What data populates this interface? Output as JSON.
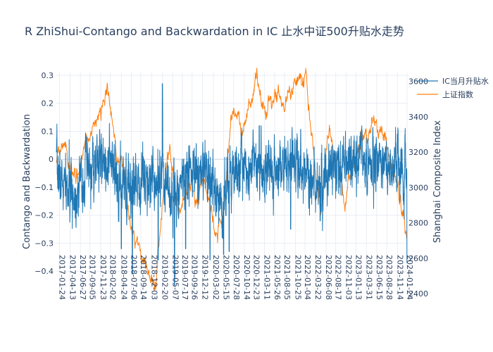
{
  "chart_data": {
    "type": "line",
    "title": "R     ZhiShui-Contango and Backwardation in IC     止水中证500升贴水走势",
    "ylabel_left": "Contango and Backwardation",
    "ylabel_right": "Shanghai Composite Index",
    "y_left_range": [
      -0.48,
      0.31
    ],
    "y_left_ticks": [
      0.3,
      0.2,
      0.1,
      0,
      -0.1,
      -0.2,
      -0.3,
      -0.4
    ],
    "y_left_tick_labels": [
      "0.3",
      "0.2",
      "0.1",
      "0",
      "−0.1",
      "−0.2",
      "−0.3",
      "−0.4"
    ],
    "y_right_range": [
      2400,
      3650
    ],
    "y_right_ticks": [
      3600,
      3400,
      3200,
      3000,
      2800,
      2600,
      2400
    ],
    "y_right_tick_labels": [
      "3600",
      "3400",
      "3200",
      "3000",
      "2800",
      "2600",
      "2400"
    ],
    "x_range": [
      "2017-01-01",
      "2024-01-24"
    ],
    "x_ticks": [
      "2017-01-24",
      "2017-04-13",
      "2017-06-27",
      "2017-09-05",
      "2017-11-23",
      "2018-02-02",
      "2018-04-24",
      "2018-07-06",
      "2018-09-14",
      "2018-12-03",
      "2019-02-20",
      "2019-05-07",
      "2019-07-17",
      "2019-09-26",
      "2019-12-12",
      "2020-03-02",
      "2020-05-15",
      "2020-07-28",
      "2020-10-14",
      "2020-12-23",
      "2021-03-11",
      "2021-05-26",
      "2021-08-05",
      "2021-10-25",
      "2022-01-04",
      "2022-03-22",
      "2022-06-08",
      "2022-08-17",
      "2022-11-03",
      "2023-01-13",
      "2023-03-31",
      "2023-06-15",
      "2023-08-28",
      "2023-11-14",
      "2024-01-24"
    ],
    "series": [
      {
        "name": "IC当月升贴水",
        "axis": "left",
        "color": "#1f77b4",
        "anchors": [
          {
            "x": "2017-01-01",
            "y": -0.04
          },
          {
            "x": "2017-03-01",
            "y": -0.1
          },
          {
            "x": "2017-05-15",
            "y": -0.13
          },
          {
            "x": "2017-08-01",
            "y": -0.05
          },
          {
            "x": "2017-11-01",
            "y": -0.02
          },
          {
            "x": "2018-01-15",
            "y": 0.0
          },
          {
            "x": "2018-04-01",
            "y": -0.1
          },
          {
            "x": "2018-06-01",
            "y": -0.12
          },
          {
            "x": "2018-09-01",
            "y": -0.06
          },
          {
            "x": "2018-12-15",
            "y": -0.06
          },
          {
            "x": "2019-02-20",
            "y": -0.04
          },
          {
            "x": "2019-05-01",
            "y": -0.14
          },
          {
            "x": "2019-08-01",
            "y": -0.05
          },
          {
            "x": "2019-11-01",
            "y": -0.05
          },
          {
            "x": "2020-02-01",
            "y": -0.08
          },
          {
            "x": "2020-04-15",
            "y": -0.16
          },
          {
            "x": "2020-07-01",
            "y": -0.07
          },
          {
            "x": "2020-10-01",
            "y": -0.02
          },
          {
            "x": "2021-01-01",
            "y": -0.02
          },
          {
            "x": "2021-05-01",
            "y": -0.03
          },
          {
            "x": "2021-08-01",
            "y": -0.03
          },
          {
            "x": "2021-11-01",
            "y": -0.01
          },
          {
            "x": "2022-02-01",
            "y": -0.06
          },
          {
            "x": "2022-05-01",
            "y": -0.1
          },
          {
            "x": "2022-08-01",
            "y": -0.02
          },
          {
            "x": "2022-11-01",
            "y": -0.02
          },
          {
            "x": "2023-02-01",
            "y": 0.0
          },
          {
            "x": "2023-05-01",
            "y": -0.02
          },
          {
            "x": "2023-08-01",
            "y": -0.01
          },
          {
            "x": "2023-11-01",
            "y": -0.02
          },
          {
            "x": "2024-01-24",
            "y": -0.08
          }
        ],
        "spikes": [
          {
            "x": "2018-07-15",
            "y": -0.41
          },
          {
            "x": "2018-04-24",
            "y": -0.32
          },
          {
            "x": "2019-01-20",
            "y": -0.36
          },
          {
            "x": "2019-02-20",
            "y": 0.27
          },
          {
            "x": "2019-05-20",
            "y": -0.45
          },
          {
            "x": "2019-08-10",
            "y": -0.32
          },
          {
            "x": "2020-02-05",
            "y": -0.36
          },
          {
            "x": "2020-05-15",
            "y": -0.34
          },
          {
            "x": "2020-06-25",
            "y": -0.33
          },
          {
            "x": "2021-02-01",
            "y": 0.12
          },
          {
            "x": "2021-09-20",
            "y": -0.25
          },
          {
            "x": "2022-04-25",
            "y": -0.22
          },
          {
            "x": "2023-11-14",
            "y": 0.09
          },
          {
            "x": "2024-01-24",
            "y": -0.37
          }
        ]
      },
      {
        "name": "上证指数",
        "axis": "right",
        "color": "#ff7f0e",
        "anchors": [
          {
            "x": "2017-01-01",
            "y": 3120
          },
          {
            "x": "2017-03-01",
            "y": 3250
          },
          {
            "x": "2017-05-10",
            "y": 3060
          },
          {
            "x": "2017-08-01",
            "y": 3270
          },
          {
            "x": "2017-11-15",
            "y": 3420
          },
          {
            "x": "2018-01-25",
            "y": 3580
          },
          {
            "x": "2018-03-01",
            "y": 3270
          },
          {
            "x": "2018-05-01",
            "y": 3120
          },
          {
            "x": "2018-07-01",
            "y": 2800
          },
          {
            "x": "2018-10-15",
            "y": 2600
          },
          {
            "x": "2019-01-02",
            "y": 2460
          },
          {
            "x": "2019-02-25",
            "y": 2970
          },
          {
            "x": "2019-04-08",
            "y": 3260
          },
          {
            "x": "2019-06-15",
            "y": 2880
          },
          {
            "x": "2019-09-10",
            "y": 3020
          },
          {
            "x": "2019-12-31",
            "y": 3050
          },
          {
            "x": "2020-03-20",
            "y": 2700
          },
          {
            "x": "2020-05-15",
            "y": 2860
          },
          {
            "x": "2020-07-10",
            "y": 3400
          },
          {
            "x": "2020-10-14",
            "y": 3330
          },
          {
            "x": "2021-01-15",
            "y": 3600
          },
          {
            "x": "2021-03-25",
            "y": 3400
          },
          {
            "x": "2021-06-15",
            "y": 3580
          },
          {
            "x": "2021-08-05",
            "y": 3450
          },
          {
            "x": "2021-10-20",
            "y": 3600
          },
          {
            "x": "2022-01-10",
            "y": 3600
          },
          {
            "x": "2022-04-27",
            "y": 2880
          },
          {
            "x": "2022-07-05",
            "y": 3350
          },
          {
            "x": "2022-10-25",
            "y": 2900
          },
          {
            "x": "2023-01-13",
            "y": 3200
          },
          {
            "x": "2023-05-08",
            "y": 3400
          },
          {
            "x": "2023-08-01",
            "y": 3280
          },
          {
            "x": "2023-11-14",
            "y": 3050
          },
          {
            "x": "2024-01-24",
            "y": 2770
          }
        ]
      }
    ],
    "legend": {
      "placement": "top-right",
      "items": [
        "IC当月升贴水",
        "上证指数"
      ]
    }
  }
}
